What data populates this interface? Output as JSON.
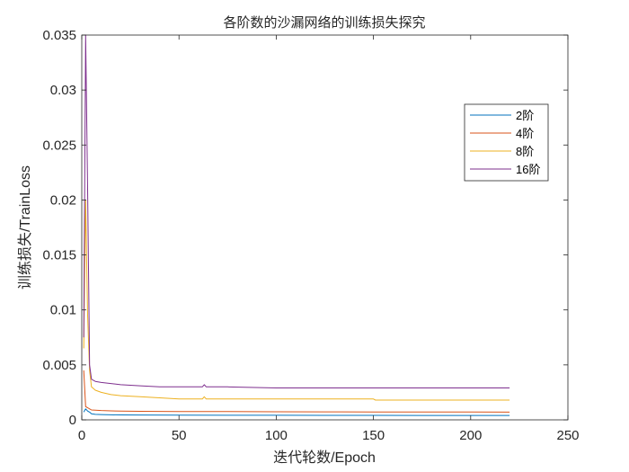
{
  "chart_data": {
    "type": "line",
    "title": "各阶数的沙漏网络的训练损失探究",
    "xlabel": "迭代轮数/Epoch",
    "ylabel": "训练损失/TrainLoss",
    "xlim": [
      0,
      250
    ],
    "ylim": [
      0,
      0.035
    ],
    "xticks": [
      0,
      50,
      100,
      150,
      200,
      250
    ],
    "yticks": [
      0,
      0.005,
      0.01,
      0.015,
      0.02,
      0.025,
      0.03,
      0.035
    ],
    "xtick_labels": [
      "0",
      "50",
      "100",
      "150",
      "200",
      "250"
    ],
    "ytick_labels": [
      "0",
      "0.005",
      "0.01",
      "0.015",
      "0.02",
      "0.025",
      "0.03",
      "0.035"
    ],
    "grid": false,
    "legend_position": "top-right",
    "series": [
      {
        "name": "2阶",
        "color": "#0072BD",
        "x": [
          1,
          2,
          3,
          4,
          5,
          7,
          10,
          15,
          20,
          30,
          50,
          75,
          100,
          125,
          150,
          175,
          200,
          220
        ],
        "y": [
          0.0007,
          0.001,
          0.0008,
          0.0007,
          0.00055,
          0.0005,
          0.00048,
          0.00046,
          0.00045,
          0.00044,
          0.00043,
          0.00042,
          0.00042,
          0.00041,
          0.00041,
          0.0004,
          0.0004,
          0.0004
        ]
      },
      {
        "name": "4阶",
        "color": "#D95319",
        "x": [
          1,
          2,
          3,
          4,
          5,
          7,
          10,
          15,
          20,
          30,
          50,
          75,
          100,
          125,
          150,
          175,
          200,
          220
        ],
        "y": [
          0.0045,
          0.0012,
          0.0011,
          0.001,
          0.0009,
          0.00088,
          0.00085,
          0.00082,
          0.0008,
          0.00078,
          0.00076,
          0.00075,
          0.00074,
          0.00073,
          0.00072,
          0.00072,
          0.00071,
          0.0007
        ]
      },
      {
        "name": "8阶",
        "color": "#EDB120",
        "x": [
          1,
          2,
          3,
          4,
          5,
          7,
          10,
          15,
          20,
          30,
          40,
          50,
          62,
          63,
          64,
          75,
          100,
          125,
          150,
          151,
          175,
          200,
          220
        ],
        "y": [
          0.0065,
          0.02,
          0.0095,
          0.0045,
          0.003,
          0.0027,
          0.0025,
          0.0023,
          0.0022,
          0.0021,
          0.002,
          0.0019,
          0.0019,
          0.0021,
          0.0019,
          0.0019,
          0.0019,
          0.0019,
          0.0019,
          0.0018,
          0.0018,
          0.0018,
          0.0018
        ]
      },
      {
        "name": "16阶",
        "color": "#7E2F8E",
        "x": [
          1,
          2,
          3,
          4,
          5,
          7,
          10,
          15,
          20,
          30,
          40,
          50,
          62,
          63,
          64,
          75,
          100,
          125,
          150,
          175,
          200,
          220
        ],
        "y": [
          0.0075,
          0.035,
          0.021,
          0.005,
          0.0037,
          0.0035,
          0.0034,
          0.0033,
          0.0032,
          0.0031,
          0.003,
          0.003,
          0.003,
          0.0032,
          0.003,
          0.003,
          0.0029,
          0.0029,
          0.0029,
          0.0029,
          0.0029,
          0.0029
        ]
      }
    ]
  }
}
